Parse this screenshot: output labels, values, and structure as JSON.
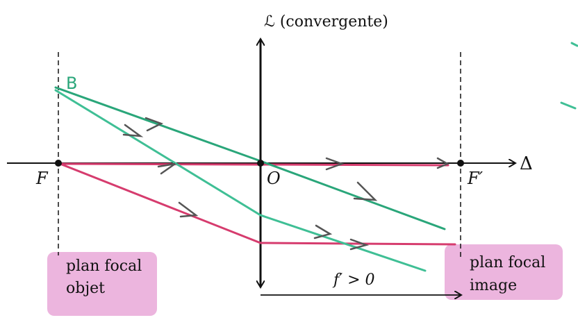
{
  "lens_label": "ℒ (convergente)",
  "points": {
    "F": "F",
    "O": "O",
    "F_prime": "F′",
    "B": "B"
  },
  "axis_label": "Δ",
  "object_focal_plane": [
    "plan focal",
    "objet"
  ],
  "image_focal_plane": [
    "plan focal",
    "image"
  ],
  "focal_length": "f′ > 0"
}
